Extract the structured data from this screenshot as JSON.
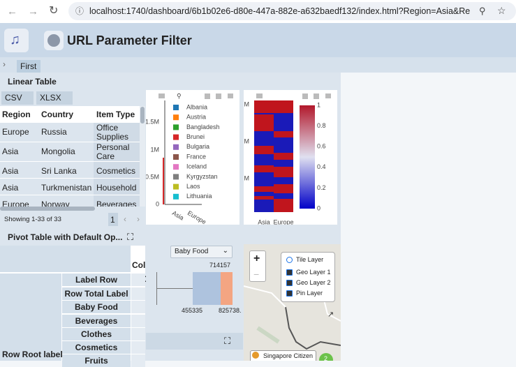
{
  "browser": {
    "url": "localhost:1740/dashboard/6b1b02e6-d80e-447a-882e-a632baedf132/index.html?Region=Asia&Region=..."
  },
  "header": {
    "title": "URL Parameter Filter"
  },
  "tabs": [
    "First"
  ],
  "linear_table": {
    "title": "Linear Table",
    "buttons": [
      "CSV",
      "XLSX"
    ],
    "columns": [
      "Region",
      "Country",
      "Item Type"
    ],
    "rows": [
      [
        "Europe",
        "Russia",
        "Office Supplies"
      ],
      [
        "Asia",
        "Mongolia",
        "Personal Care"
      ],
      [
        "Asia",
        "Sri Lanka",
        "Cosmetics"
      ],
      [
        "Asia",
        "Turkmenistan",
        "Household"
      ],
      [
        "Europe",
        "Norway",
        "Beverages"
      ]
    ],
    "footer": "Showing 1-33 of 33",
    "page": "1"
  },
  "bar_chart": {
    "legend": [
      "Albania",
      "Austria",
      "Bangladesh",
      "Brunei",
      "Bulgaria",
      "France",
      "Iceland",
      "Kyrgyzstan",
      "Laos",
      "Lithuania"
    ],
    "yticks": [
      "0",
      "0.5M",
      "1M",
      "1.5M"
    ],
    "categories": [
      "Asia",
      "Europe"
    ]
  },
  "heatmap": {
    "yticks": [
      "M",
      "M",
      "M"
    ],
    "colorbar_ticks": [
      "0",
      "0.2",
      "0.4",
      "0.6",
      "0.8",
      "1"
    ],
    "categories": [
      "Asia",
      "Europe"
    ]
  },
  "pivot": {
    "title": "Pivot Table with Default Op...",
    "col_header": "Col",
    "cell": "C",
    "rows": [
      "Label Row",
      "Row Total Label",
      "Baby Food",
      "Beverages",
      "Clothes",
      "Cosmetics",
      "Fruits"
    ],
    "root_label": "Row Root label"
  },
  "box_plot": {
    "dropdown": "Baby Food",
    "labels": [
      "714157",
      "455335",
      "825738."
    ]
  },
  "map": {
    "zoom_in": "+",
    "zoom_out": "−",
    "layers": [
      "Tile Layer",
      "Geo Layer 1",
      "Geo Layer 2",
      "Pin Layer"
    ],
    "pin_label": "Singapore Citizen",
    "cluster": "2"
  }
}
